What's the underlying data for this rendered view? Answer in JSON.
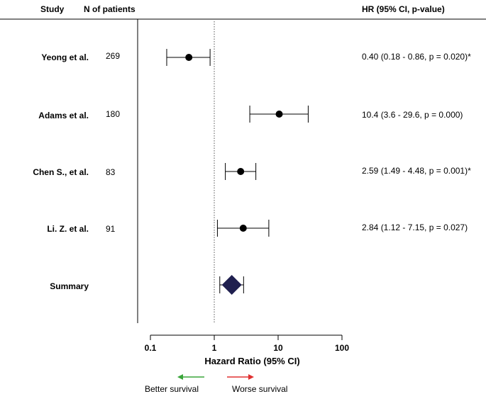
{
  "header": {
    "study": "Study",
    "n_patients": "N of patients",
    "hr": "HR (95% CI, p-value)"
  },
  "rows": [
    {
      "study": "Yeong et al.",
      "n": "269",
      "hr_text": "0.40 (0.18 - 0.86, p = 0.020)*"
    },
    {
      "study": "Adams et al.",
      "n": "180",
      "hr_text": "10.4 (3.6 - 29.6, p = 0.000)"
    },
    {
      "study": "Chen S., et al.",
      "n": "83",
      "hr_text": "2.59 (1.49 - 4.48, p = 0.001)*"
    },
    {
      "study": "Li. Z. et al.",
      "n": "91",
      "hr_text": "2.84 (1.12 - 7.15, p = 0.027)"
    }
  ],
  "summary_label": "Summary",
  "legend": {
    "better": "Better survival",
    "worse": "Worse survival",
    "better_color": "#3aa53a",
    "worse_color": "#e03030"
  },
  "chart_data": {
    "type": "scatter",
    "subtype": "forest-plot",
    "xlabel": "Hazard Ratio (95% CI)",
    "xscale": "log",
    "xlim": [
      0.1,
      100
    ],
    "xticks": [
      0.1,
      1,
      10,
      100
    ],
    "xtick_labels": [
      "0.1",
      "1",
      "10",
      "100"
    ],
    "reference_line": 1,
    "series": [
      {
        "points": [
          {
            "label": "Yeong et al.",
            "hr": 0.4,
            "lo": 0.18,
            "hi": 0.86
          },
          {
            "label": "Adams et al.",
            "hr": 10.4,
            "lo": 3.6,
            "hi": 29.6
          },
          {
            "label": "Chen S., et al.",
            "hr": 2.59,
            "lo": 1.49,
            "hi": 4.48
          },
          {
            "label": "Li. Z. et al.",
            "hr": 2.84,
            "lo": 1.12,
            "hi": 7.15
          }
        ]
      }
    ],
    "summary": {
      "hr": 1.88,
      "lo": 1.22,
      "hi": 2.88
    },
    "colors": {
      "point": "#000000",
      "summary": "#1f1f4f"
    }
  }
}
